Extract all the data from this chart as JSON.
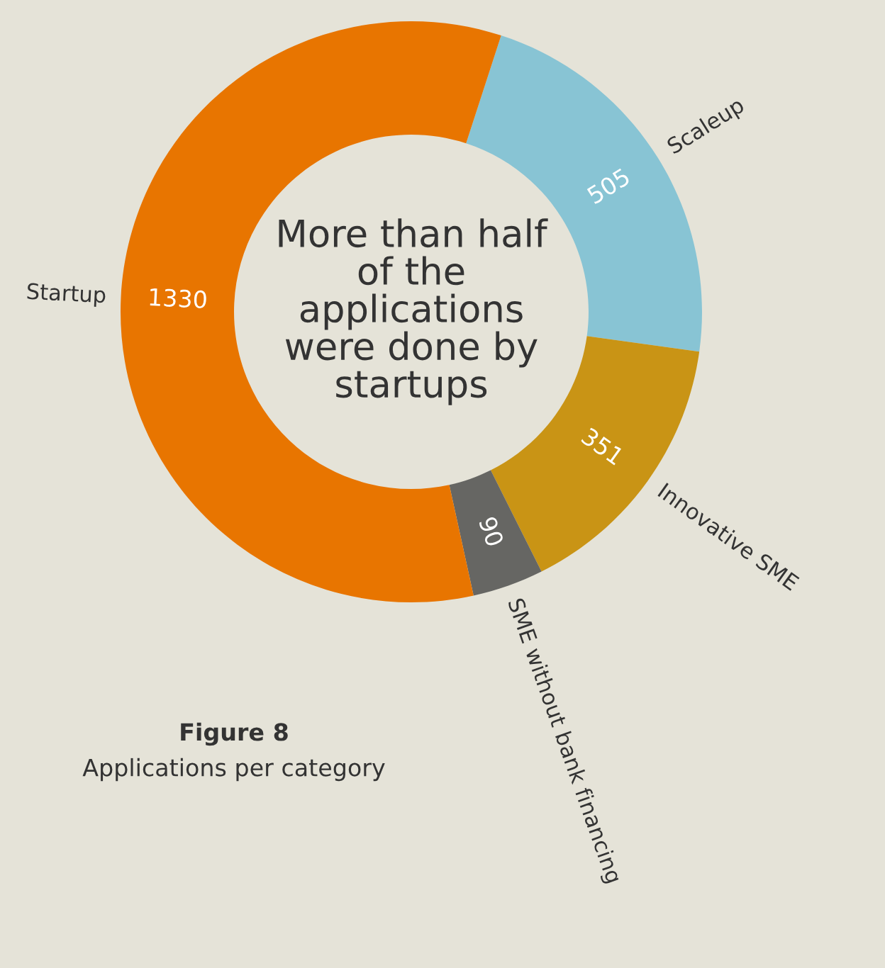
{
  "chart_data": {
    "type": "donut",
    "title": "Figure 8",
    "subtitle": "Applications per category",
    "annotations": [
      "More than half of the applications were done by startups"
    ],
    "categories": [
      "Scaleup",
      "Innovative SME",
      "SME without bank financing",
      "Startup"
    ],
    "values": [
      505,
      351,
      90,
      1330
    ],
    "colors": [
      "#88c4d4",
      "#c99415",
      "#666663",
      "#e87500"
    ],
    "data_labels": true,
    "legend": false
  }
}
